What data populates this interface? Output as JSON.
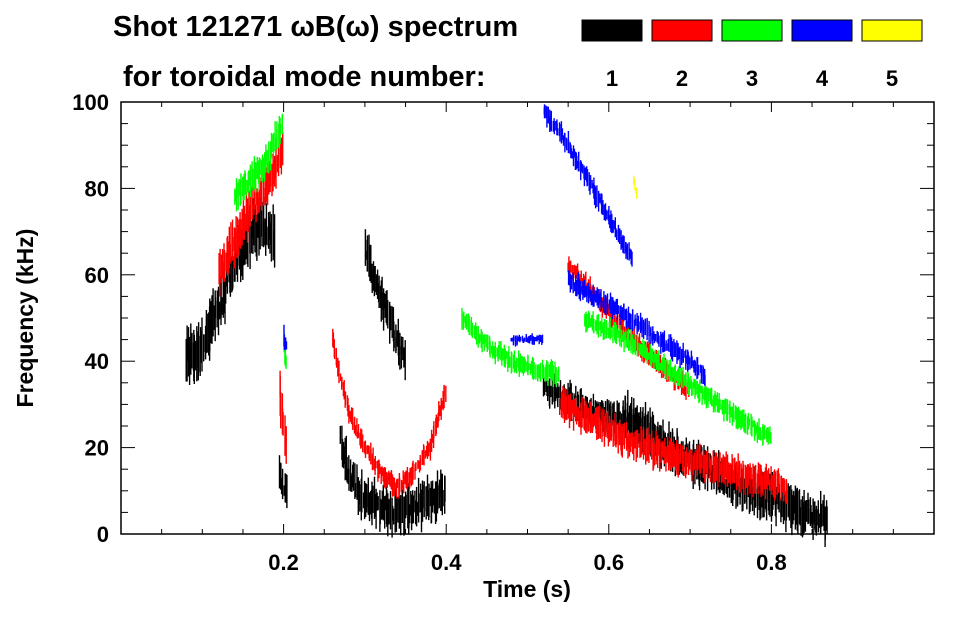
{
  "chart_data": {
    "type": "scatter",
    "title_line1": "Shot 121271 ωB(ω) spectrum",
    "title_line2": "for toroidal mode number:",
    "xlabel": "Time (s)",
    "ylabel": "Frequency (kHz)",
    "xlim": [
      0.0,
      1.0
    ],
    "ylim": [
      0,
      100
    ],
    "x_ticks": [
      0.2,
      0.4,
      0.6,
      0.8
    ],
    "x_tick_labels": [
      "0.2",
      "0.4",
      "0.6",
      "0.8"
    ],
    "y_ticks": [
      0,
      20,
      40,
      60,
      80,
      100
    ],
    "y_tick_labels": [
      "0",
      "20",
      "40",
      "60",
      "80",
      "100"
    ],
    "legend": [
      {
        "label": "1",
        "color": "#000000"
      },
      {
        "label": "2",
        "color": "#ff0000"
      },
      {
        "label": "3",
        "color": "#00ff00"
      },
      {
        "label": "4",
        "color": "#0000ff"
      },
      {
        "label": "5",
        "color": "#ffff00"
      }
    ],
    "series": [
      {
        "name": "n=1",
        "color": "#000000",
        "bursts": [
          {
            "t": [
              0.08,
              0.095,
              0.11,
              0.12,
              0.13
            ],
            "f": [
              41,
              42,
              48,
              52,
              56
            ],
            "spread": 5
          },
          {
            "t": [
              0.13,
              0.145,
              0.16,
              0.175,
              0.19
            ],
            "f": [
              60,
              64,
              70,
              71,
              68
            ],
            "spread": 5
          },
          {
            "t": [
              0.195,
              0.2,
              0.205
            ],
            "f": [
              14,
              11,
              9
            ],
            "spread": 3
          },
          {
            "t": [
              0.27,
              0.28,
              0.3,
              0.32,
              0.34,
              0.36,
              0.38,
              0.4
            ],
            "f": [
              22,
              14,
              8,
              6,
              5,
              6,
              8,
              10
            ],
            "spread": 4
          },
          {
            "t": [
              0.3,
              0.31,
              0.32,
              0.33,
              0.34,
              0.35
            ],
            "f": [
              66,
              60,
              55,
              50,
              45,
              40
            ],
            "spread": 4
          },
          {
            "t": [
              0.52,
              0.55,
              0.58,
              0.61,
              0.64
            ],
            "f": [
              34,
              31,
              28,
              27,
              24
            ],
            "spread": 3
          },
          {
            "t": [
              0.62,
              0.65,
              0.68,
              0.72,
              0.76,
              0.8,
              0.84,
              0.87
            ],
            "f": [
              28,
              24,
              19,
              15,
              11,
              8,
              5,
              3
            ],
            "spread": 4
          }
        ]
      },
      {
        "name": "n=2",
        "color": "#ff0000",
        "bursts": [
          {
            "t": [
              0.12,
              0.14,
              0.16,
              0.18,
              0.2
            ],
            "f": [
              60,
              68,
              75,
              81,
              90
            ],
            "spread": 4
          },
          {
            "t": [
              0.195,
              0.2,
              0.205
            ],
            "f": [
              34,
              24,
              18
            ],
            "spread": 4
          },
          {
            "t": [
              0.26,
              0.28,
              0.3,
              0.32,
              0.34,
              0.36,
              0.38,
              0.4
            ],
            "f": [
              45,
              28,
              20,
              14,
              11,
              14,
              20,
              34
            ],
            "spread": 2
          },
          {
            "t": [
              0.54,
              0.57,
              0.6,
              0.63,
              0.66,
              0.7,
              0.74,
              0.78,
              0.82
            ],
            "f": [
              30,
              27,
              24,
              21,
              19,
              17,
              15,
              13,
              11
            ],
            "spread": 3
          },
          {
            "t": [
              0.55,
              0.58,
              0.61,
              0.64,
              0.67,
              0.7
            ],
            "f": [
              62,
              56,
              49,
              43,
              38,
              33
            ],
            "spread": 2
          }
        ]
      },
      {
        "name": "n=3",
        "color": "#00ff00",
        "bursts": [
          {
            "t": [
              0.14,
              0.16,
              0.18,
              0.2
            ],
            "f": [
              78,
              82,
              87,
              96
            ],
            "spread": 3
          },
          {
            "t": [
              0.2,
              0.205
            ],
            "f": [
              44,
              38
            ],
            "spread": 3
          },
          {
            "t": [
              0.42,
              0.45,
              0.48,
              0.51,
              0.54
            ],
            "f": [
              50,
              44,
              40,
              38,
              37
            ],
            "spread": 2
          },
          {
            "t": [
              0.57,
              0.6,
              0.63,
              0.66,
              0.69,
              0.72,
              0.76,
              0.8
            ],
            "f": [
              50,
              47,
              44,
              40,
              36,
              32,
              27,
              22
            ],
            "spread": 2
          }
        ]
      },
      {
        "name": "n=4",
        "color": "#0000ff",
        "bursts": [
          {
            "t": [
              0.52,
              0.55,
              0.58,
              0.61,
              0.63
            ],
            "f": [
              98,
              90,
              80,
              70,
              63
            ],
            "spread": 2
          },
          {
            "t": [
              0.55,
              0.58,
              0.61,
              0.64,
              0.67,
              0.7,
              0.72
            ],
            "f": [
              59,
              55,
              52,
              48,
              44,
              40,
              36
            ],
            "spread": 2
          },
          {
            "t": [
              0.2,
              0.205
            ],
            "f": [
              46,
              42
            ],
            "spread": 2
          },
          {
            "t": [
              0.48,
              0.5,
              0.52
            ],
            "f": [
              45,
              45,
              45
            ],
            "spread": 1
          }
        ]
      },
      {
        "name": "n=5",
        "color": "#ffff00",
        "bursts": [
          {
            "t": [
              0.63,
              0.635
            ],
            "f": [
              82,
              78
            ],
            "spread": 1
          }
        ]
      }
    ]
  }
}
